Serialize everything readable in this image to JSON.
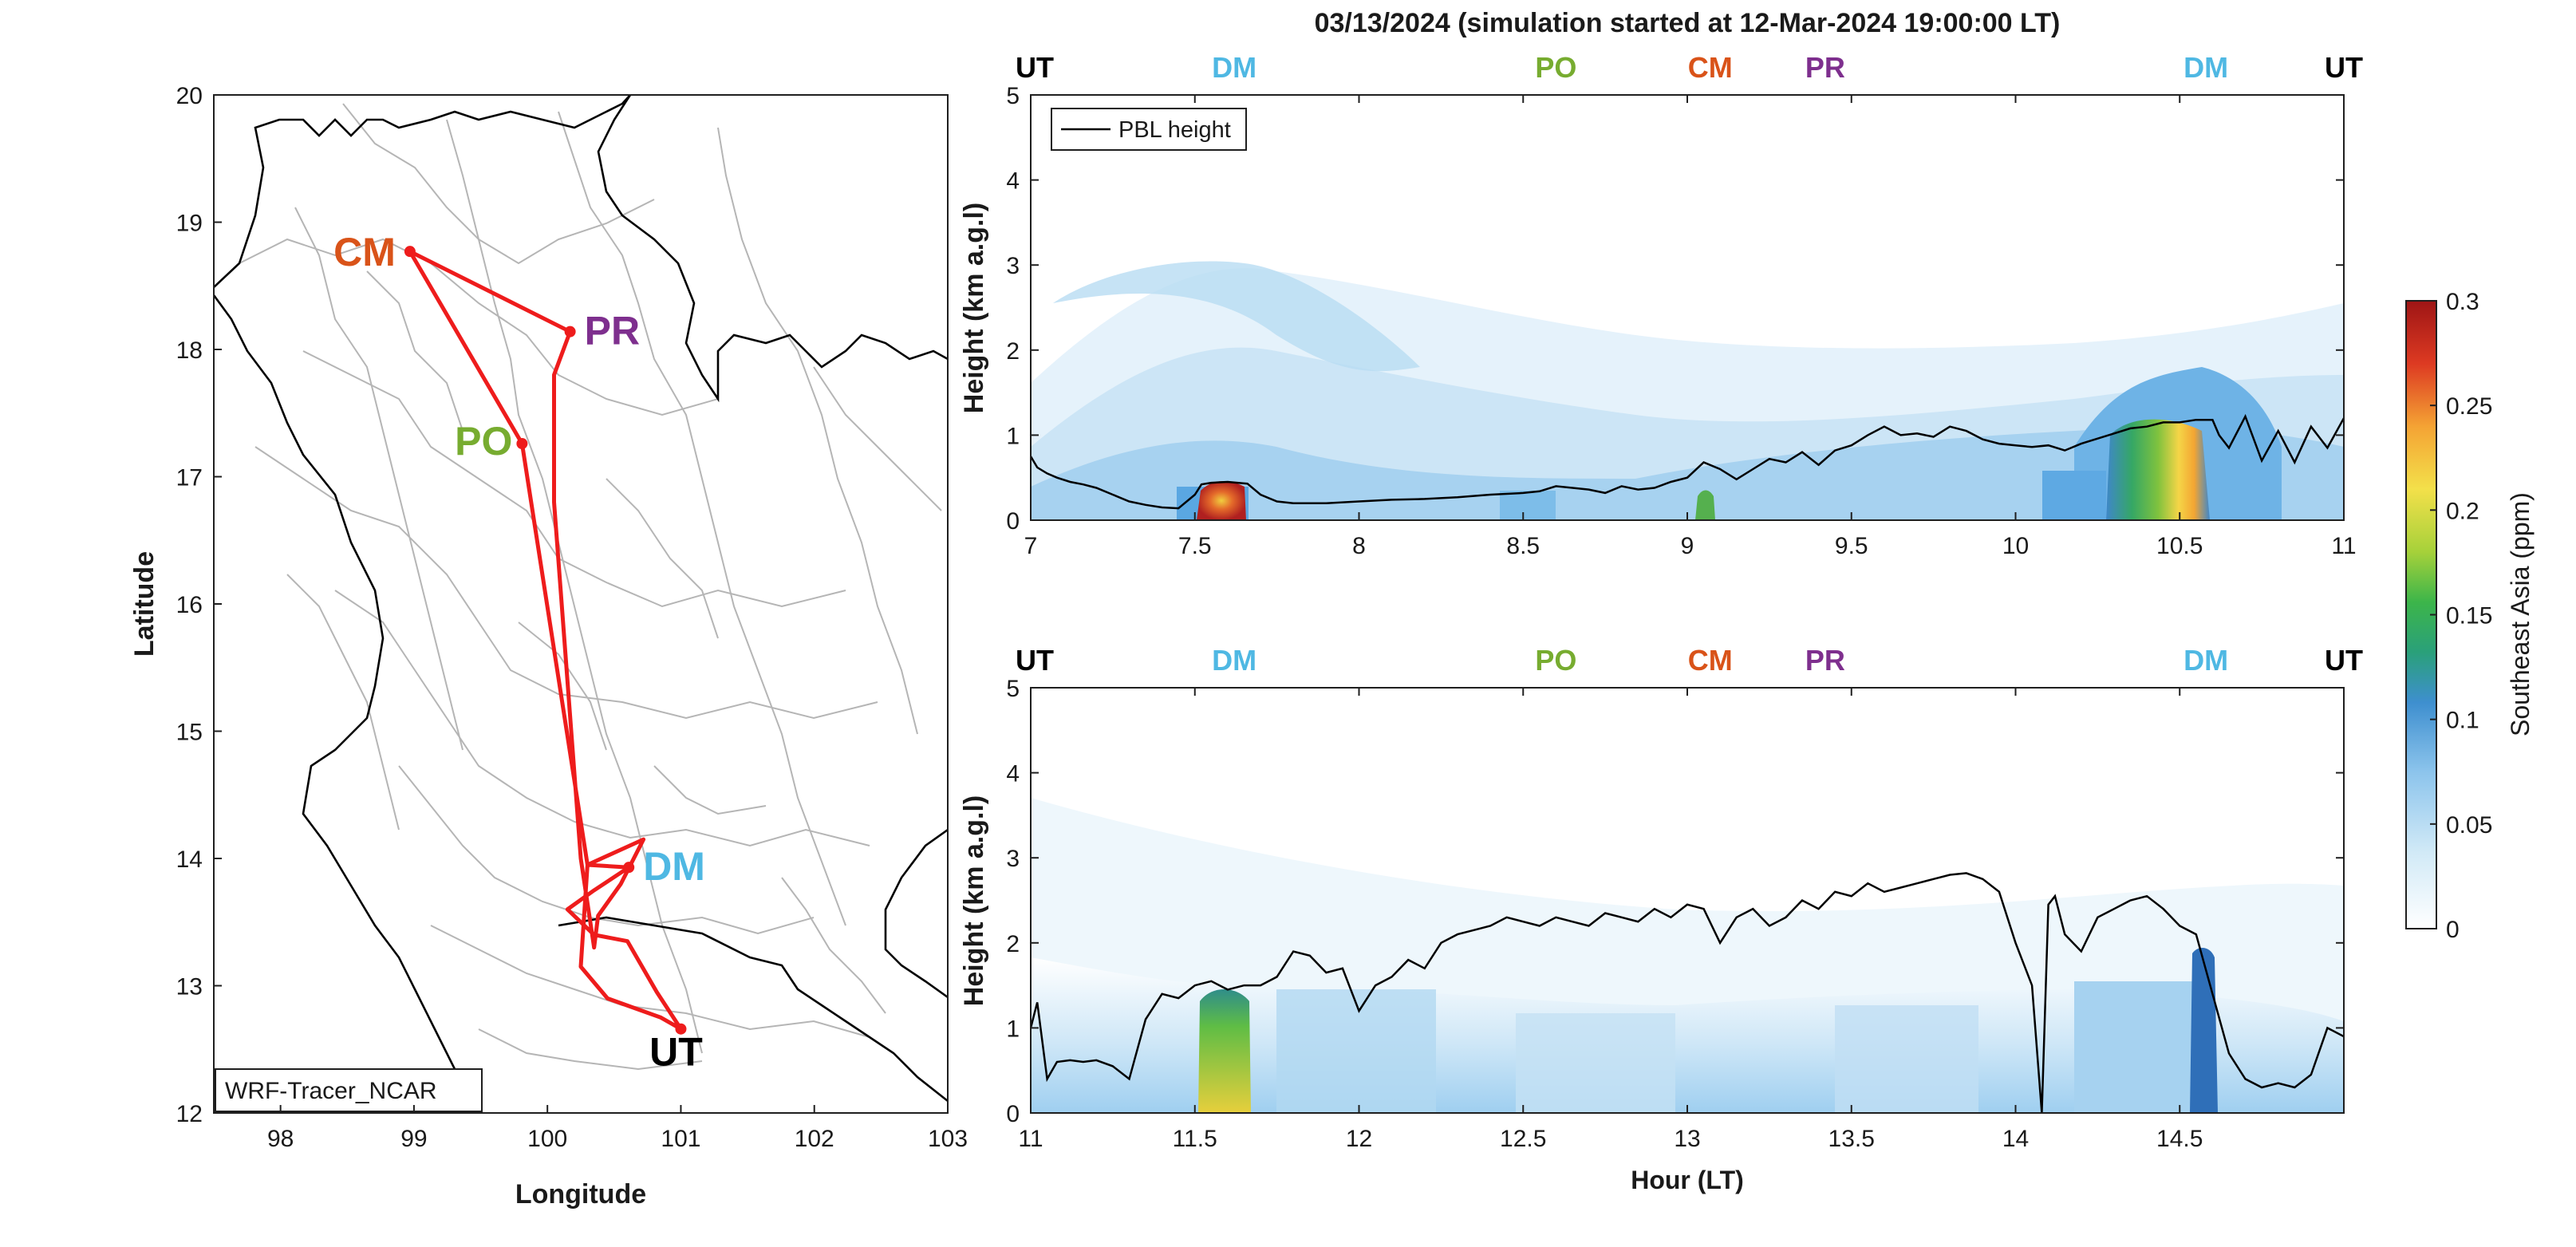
{
  "title": "03/13/2024 (simulation started at 12-Mar-2024 19:00:00 LT)",
  "colors": {
    "route": "#ee1c1c",
    "UT": "#000000",
    "DM": "#4fb8e3",
    "PO": "#77ac30",
    "CM": "#d95319",
    "PR": "#7e2f8e",
    "pbl": "#000000"
  },
  "map": {
    "xlabel": "Longitude",
    "ylabel": "Latitude",
    "xlim": [
      97.5,
      103
    ],
    "ylim": [
      12,
      20
    ],
    "xticks": [
      "98",
      "99",
      "100",
      "101",
      "102",
      "103"
    ],
    "yticks": [
      "12",
      "13",
      "14",
      "15",
      "16",
      "17",
      "18",
      "19",
      "20"
    ],
    "model_label": "WRF-Tracer_NCAR",
    "sites": [
      {
        "code": "CM",
        "lon": 98.97,
        "lat": 18.77
      },
      {
        "code": "PR",
        "lon": 100.17,
        "lat": 18.14
      },
      {
        "code": "PO",
        "lon": 99.81,
        "lat": 17.26
      },
      {
        "code": "DM",
        "lon": 100.61,
        "lat": 13.93
      },
      {
        "code": "UT",
        "lon": 101.0,
        "lat": 12.66
      }
    ],
    "route": [
      [
        101.0,
        12.66
      ],
      [
        100.85,
        12.75
      ],
      [
        100.45,
        12.9
      ],
      [
        100.25,
        13.15
      ],
      [
        100.3,
        13.95
      ],
      [
        100.72,
        14.15
      ],
      [
        100.55,
        13.8
      ],
      [
        100.38,
        13.55
      ],
      [
        100.35,
        13.3
      ],
      [
        100.25,
        14.0
      ],
      [
        100.05,
        16.8
      ],
      [
        100.05,
        17.8
      ],
      [
        100.17,
        18.14
      ],
      [
        98.97,
        18.77
      ],
      [
        99.81,
        17.26
      ],
      [
        100.3,
        13.95
      ],
      [
        100.61,
        13.93
      ],
      [
        100.35,
        13.75
      ],
      [
        100.15,
        13.6
      ],
      [
        100.35,
        13.4
      ],
      [
        100.6,
        13.35
      ],
      [
        100.82,
        12.95
      ],
      [
        101.0,
        12.66
      ]
    ]
  },
  "chart_data": [
    {
      "type": "heatmap",
      "xlim": [
        7,
        11
      ],
      "ylim": [
        0,
        5
      ],
      "xticks": [
        "7",
        "7.5",
        "8",
        "8.5",
        "9",
        "9.5",
        "10",
        "10.5",
        "11"
      ],
      "yticks": [
        "0",
        "1",
        "2",
        "3",
        "4",
        "5"
      ],
      "ylabel": "Height (km a.g.l)",
      "legend": "PBL height",
      "legend_position": "top-left",
      "top_labels": [
        {
          "t": "UT",
          "x": 7.0
        },
        {
          "t": "DM",
          "x": 7.62
        },
        {
          "t": "PO",
          "x": 8.6
        },
        {
          "t": "CM",
          "x": 9.07
        },
        {
          "t": "PR",
          "x": 9.42
        },
        {
          "t": "DM",
          "x": 10.58
        },
        {
          "t": "UT",
          "x": 11.0
        }
      ],
      "pbl": {
        "x": [
          7.0,
          7.02,
          7.05,
          7.08,
          7.12,
          7.16,
          7.2,
          7.25,
          7.3,
          7.35,
          7.4,
          7.45,
          7.5,
          7.52,
          7.55,
          7.6,
          7.63,
          7.66,
          7.7,
          7.75,
          7.8,
          7.9,
          8.0,
          8.1,
          8.2,
          8.3,
          8.4,
          8.5,
          8.55,
          8.6,
          8.65,
          8.7,
          8.75,
          8.8,
          8.85,
          8.9,
          8.95,
          9.0,
          9.05,
          9.1,
          9.15,
          9.2,
          9.25,
          9.3,
          9.35,
          9.4,
          9.45,
          9.5,
          9.55,
          9.6,
          9.65,
          9.7,
          9.75,
          9.8,
          9.85,
          9.9,
          9.95,
          10.0,
          10.05,
          10.1,
          10.15,
          10.2,
          10.25,
          10.3,
          10.35,
          10.4,
          10.45,
          10.5,
          10.55,
          10.6,
          10.62,
          10.65,
          10.7,
          10.75,
          10.8,
          10.85,
          10.9,
          10.95,
          11.0
        ],
        "y": [
          0.75,
          0.62,
          0.55,
          0.5,
          0.45,
          0.42,
          0.38,
          0.3,
          0.22,
          0.18,
          0.15,
          0.14,
          0.3,
          0.42,
          0.44,
          0.45,
          0.44,
          0.43,
          0.3,
          0.22,
          0.2,
          0.2,
          0.22,
          0.24,
          0.25,
          0.27,
          0.3,
          0.32,
          0.34,
          0.4,
          0.38,
          0.36,
          0.32,
          0.4,
          0.36,
          0.38,
          0.45,
          0.5,
          0.68,
          0.6,
          0.48,
          0.6,
          0.72,
          0.68,
          0.8,
          0.65,
          0.82,
          0.88,
          1.0,
          1.1,
          1.0,
          1.02,
          0.98,
          1.1,
          1.05,
          0.95,
          0.9,
          0.88,
          0.86,
          0.88,
          0.82,
          0.9,
          0.96,
          1.02,
          1.08,
          1.1,
          1.15,
          1.15,
          1.18,
          1.18,
          1.0,
          0.85,
          1.22,
          0.7,
          1.05,
          0.68,
          1.1,
          0.85,
          1.2
        ]
      },
      "colorbar": {
        "label": "Southeast Asia (ppm)",
        "ticks": [
          "0",
          "0.05",
          "0.1",
          "0.15",
          "0.2",
          "0.25",
          "0.3"
        ],
        "range": [
          0,
          0.3
        ]
      }
    },
    {
      "type": "heatmap",
      "xlim": [
        11,
        15
      ],
      "ylim": [
        0,
        5
      ],
      "xticks": [
        "11",
        "11.5",
        "12",
        "12.5",
        "13",
        "13.5",
        "14",
        "14.5"
      ],
      "yticks": [
        "0",
        "1",
        "2",
        "3",
        "4",
        "5"
      ],
      "xlabel": "Hour (LT)",
      "ylabel": "Height (km a.g.l)",
      "top_labels": [
        {
          "t": "UT",
          "x": 11.0
        },
        {
          "t": "DM",
          "x": 11.62
        },
        {
          "t": "PO",
          "x": 12.6
        },
        {
          "t": "CM",
          "x": 13.07
        },
        {
          "t": "PR",
          "x": 13.42
        },
        {
          "t": "DM",
          "x": 14.58
        },
        {
          "t": "UT",
          "x": 15.0
        }
      ],
      "pbl": {
        "x": [
          11.0,
          11.02,
          11.05,
          11.08,
          11.12,
          11.16,
          11.2,
          11.25,
          11.3,
          11.35,
          11.4,
          11.45,
          11.5,
          11.55,
          11.6,
          11.65,
          11.7,
          11.75,
          11.8,
          11.85,
          11.9,
          11.95,
          12.0,
          12.05,
          12.1,
          12.15,
          12.2,
          12.25,
          12.3,
          12.35,
          12.4,
          12.45,
          12.5,
          12.55,
          12.6,
          12.65,
          12.7,
          12.75,
          12.8,
          12.85,
          12.9,
          12.95,
          13.0,
          13.05,
          13.1,
          13.15,
          13.2,
          13.25,
          13.3,
          13.35,
          13.4,
          13.45,
          13.5,
          13.55,
          13.6,
          13.65,
          13.7,
          13.75,
          13.8,
          13.85,
          13.9,
          13.95,
          14.0,
          14.05,
          14.08,
          14.1,
          14.12,
          14.15,
          14.2,
          14.25,
          14.3,
          14.35,
          14.4,
          14.45,
          14.5,
          14.55,
          14.6,
          14.65,
          14.7,
          14.75,
          14.8,
          14.85,
          14.9,
          14.95,
          15.0
        ],
        "y": [
          1.0,
          1.3,
          0.4,
          0.6,
          0.62,
          0.6,
          0.62,
          0.55,
          0.4,
          1.1,
          1.4,
          1.35,
          1.5,
          1.55,
          1.45,
          1.5,
          1.5,
          1.6,
          1.9,
          1.85,
          1.65,
          1.7,
          1.2,
          1.5,
          1.6,
          1.8,
          1.7,
          2.0,
          2.1,
          2.15,
          2.2,
          2.3,
          2.25,
          2.2,
          2.3,
          2.25,
          2.2,
          2.35,
          2.3,
          2.25,
          2.4,
          2.3,
          2.45,
          2.4,
          2.0,
          2.3,
          2.4,
          2.2,
          2.3,
          2.5,
          2.4,
          2.6,
          2.55,
          2.7,
          2.6,
          2.65,
          2.7,
          2.75,
          2.8,
          2.82,
          2.75,
          2.6,
          2.0,
          1.5,
          0.0,
          2.45,
          2.55,
          2.1,
          1.9,
          2.3,
          2.4,
          2.5,
          2.55,
          2.4,
          2.2,
          2.1,
          1.4,
          0.7,
          0.4,
          0.3,
          0.35,
          0.3,
          0.45,
          1.0,
          0.9
        ]
      }
    }
  ]
}
